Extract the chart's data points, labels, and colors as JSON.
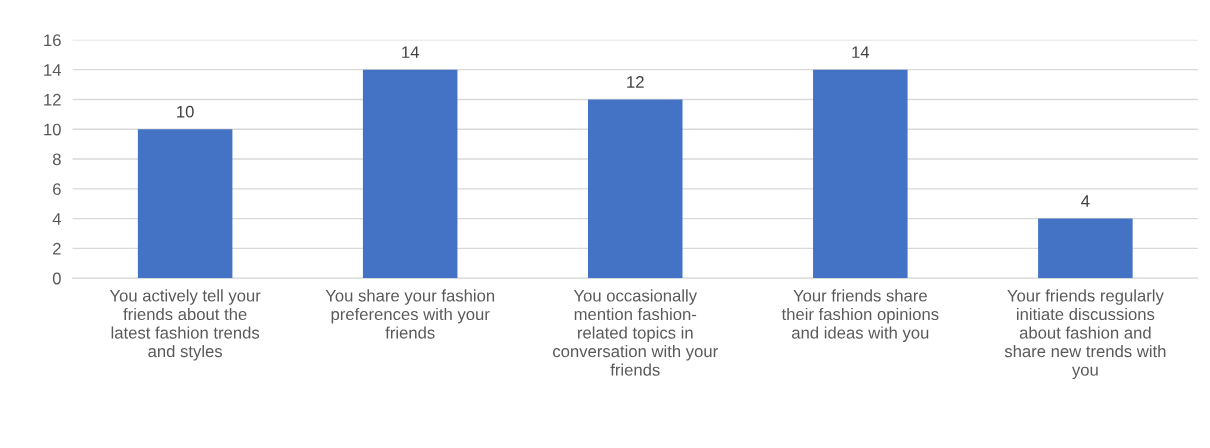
{
  "chart_data": {
    "type": "bar",
    "categories": [
      "You actively tell your\nfriends about the\nlatest fashion trends\nand styles",
      "You share your fashion\npreferences with your\nfriends",
      "You occasionally\nmention fashion-\nrelated topics in\nconversation with your\nfriends",
      "Your friends share\ntheir fashion opinions\nand ideas with you",
      "Your friends regularly\ninitiate discussions\nabout fashion and\nshare new trends with\nyou"
    ],
    "values": [
      10,
      14,
      12,
      14,
      4
    ],
    "color": "#4472c4",
    "ylim": [
      0,
      16
    ],
    "yticks": [
      0,
      2,
      4,
      6,
      8,
      10,
      12,
      14,
      16
    ],
    "grid": "y",
    "data_labels": true
  }
}
